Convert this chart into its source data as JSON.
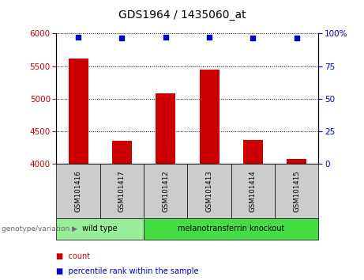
{
  "title": "GDS1964 / 1435060_at",
  "samples": [
    "GSM101416",
    "GSM101417",
    "GSM101412",
    "GSM101413",
    "GSM101414",
    "GSM101415"
  ],
  "counts": [
    5620,
    4350,
    5080,
    5450,
    4360,
    4080
  ],
  "percentiles": [
    97.5,
    96.5,
    97.5,
    97.5,
    96.5,
    96.5
  ],
  "ylim_left": [
    4000,
    6000
  ],
  "ylim_right": [
    0,
    100
  ],
  "yticks_left": [
    4000,
    4500,
    5000,
    5500,
    6000
  ],
  "yticks_right": [
    0,
    25,
    50,
    75,
    100
  ],
  "bar_color": "#cc0000",
  "dot_color": "#0000cc",
  "groups": [
    {
      "label": "wild type",
      "indices": [
        0,
        1
      ],
      "color": "#99ee99"
    },
    {
      "label": "melanotransferrin knockout",
      "indices": [
        2,
        3,
        4,
        5
      ],
      "color": "#44dd44"
    }
  ],
  "legend_items": [
    {
      "label": "count",
      "color": "#cc0000"
    },
    {
      "label": "percentile rank within the sample",
      "color": "#0000cc"
    }
  ],
  "group_label": "genotype/variation",
  "background_color": "#ffffff",
  "cell_bg": "#cccccc"
}
